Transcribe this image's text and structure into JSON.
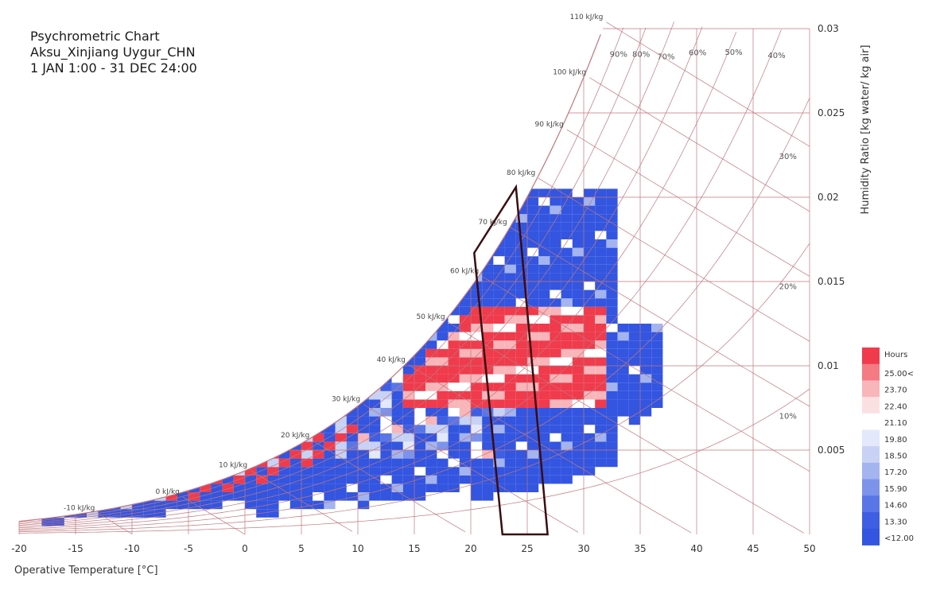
{
  "chart_data": {
    "type": "heatmap",
    "title_lines": [
      "Psychrometric Chart",
      "Aksu_Xinjiang Uygur_CHN",
      "1 JAN 1:00 - 31 DEC 24:00"
    ],
    "xlabel": "Operative Temperature [°C]",
    "ylabel": "Humidity Ratio [kg water/ kg air]",
    "xlim": [
      -20,
      50
    ],
    "ylim": [
      0,
      0.03
    ],
    "x_ticks": [
      "-20",
      "-15",
      "-10",
      "-5",
      "0",
      "5",
      "10",
      "15",
      "20",
      "25",
      "30",
      "35",
      "40",
      "45",
      "50"
    ],
    "y_ticks": [
      "0.005",
      "0.01",
      "0.015",
      "0.02",
      "0.025",
      "0.03"
    ],
    "y_tick_values": [
      0.005,
      0.01,
      0.015,
      0.02,
      0.025,
      0.03
    ],
    "rh_lines": [
      {
        "rh": 10,
        "label": "10%"
      },
      {
        "rh": 20,
        "label": "20%"
      },
      {
        "rh": 30,
        "label": "30%"
      },
      {
        "rh": 40,
        "label": "40%"
      },
      {
        "rh": 50,
        "label": "50%"
      },
      {
        "rh": 60,
        "label": "60%"
      },
      {
        "rh": 70,
        "label": "70%"
      },
      {
        "rh": 80,
        "label": "80%"
      },
      {
        "rh": 90,
        "label": "90%"
      },
      {
        "rh": 100,
        "label": ""
      }
    ],
    "enthalpy_lines": [
      {
        "h": -10,
        "label": "-10 kJ/kg"
      },
      {
        "h": 0,
        "label": "0 kJ/kg"
      },
      {
        "h": 10,
        "label": "10 kJ/kg"
      },
      {
        "h": 20,
        "label": "20 kJ/kg"
      },
      {
        "h": 30,
        "label": "30 kJ/kg"
      },
      {
        "h": 40,
        "label": "40 kJ/kg"
      },
      {
        "h": 50,
        "label": "50 kJ/kg"
      },
      {
        "h": 60,
        "label": "60 kJ/kg"
      },
      {
        "h": 70,
        "label": "70 kJ/kg"
      },
      {
        "h": 80,
        "label": "80 kJ/kg"
      },
      {
        "h": 90,
        "label": "90 kJ/kg"
      },
      {
        "h": 100,
        "label": "100 kJ/kg"
      },
      {
        "h": 110,
        "label": "110 kJ/kg"
      }
    ],
    "comfort_polygon": [
      [
        22.8,
        0.0
      ],
      [
        26.8,
        0.0
      ],
      [
        24.0,
        0.0206
      ],
      [
        20.3,
        0.0167
      ]
    ],
    "legend": {
      "title": "Hours",
      "labels": [
        "25.00<",
        "23.70",
        "22.40",
        "21.10",
        "19.80",
        "18.50",
        "17.20",
        "15.90",
        "14.60",
        "13.30",
        "<12.00"
      ],
      "colors": [
        "#ef3b4c",
        "#f47a83",
        "#f8b6ba",
        "#fbe0e1",
        "#ffffff",
        "#e3e8fb",
        "#c7d2f5",
        "#a3b4ef",
        "#7d93ea",
        "#5a76e6",
        "#3f5fe3",
        "#3355e0"
      ]
    },
    "colors": {
      "grid": "#c0777d",
      "comfort": "#3a0d10",
      "cold": "#3a5fe0",
      "hot": "#ef3b4c"
    }
  }
}
